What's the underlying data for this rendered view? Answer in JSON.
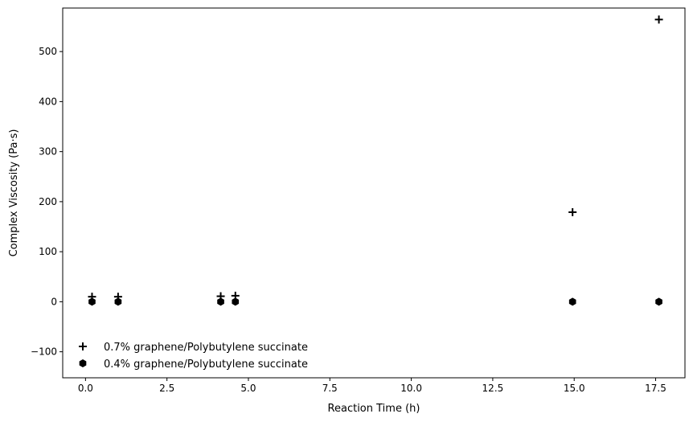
{
  "chart_data": {
    "type": "scatter",
    "xlabel": "Reaction Time (h)",
    "ylabel": "Complex Viscosity (Pa·s)",
    "xlim": [
      -0.7,
      18.4
    ],
    "ylim": [
      -152,
      587
    ],
    "x_ticks": [
      0.0,
      2.5,
      5.0,
      7.5,
      10.0,
      12.5,
      15.0,
      17.5
    ],
    "x_tick_labels": [
      "0.0",
      "2.5",
      "5.0",
      "7.5",
      "10.0",
      "12.5",
      "15.0",
      "17.5"
    ],
    "y_ticks": [
      -100,
      0,
      100,
      200,
      300,
      400,
      500
    ],
    "y_tick_labels": [
      "−100",
      "0",
      "100",
      "200",
      "300",
      "400",
      "500"
    ],
    "grid": false,
    "legend_position": "lower-left",
    "series": [
      {
        "name": "0.7% graphene/Polybutylene succinate",
        "marker": "plus",
        "color": "#000000",
        "x": [
          0.2,
          1.0,
          4.15,
          4.6,
          14.95,
          17.6
        ],
        "y": [
          10,
          10,
          11,
          12,
          179,
          564
        ]
      },
      {
        "name": "0.4% graphene/Polybutylene succinate",
        "marker": "hexagon",
        "color": "#000000",
        "x": [
          0.2,
          1.0,
          4.15,
          4.6,
          14.95,
          17.6
        ],
        "y": [
          0,
          0,
          0,
          0,
          0,
          0
        ]
      }
    ]
  }
}
